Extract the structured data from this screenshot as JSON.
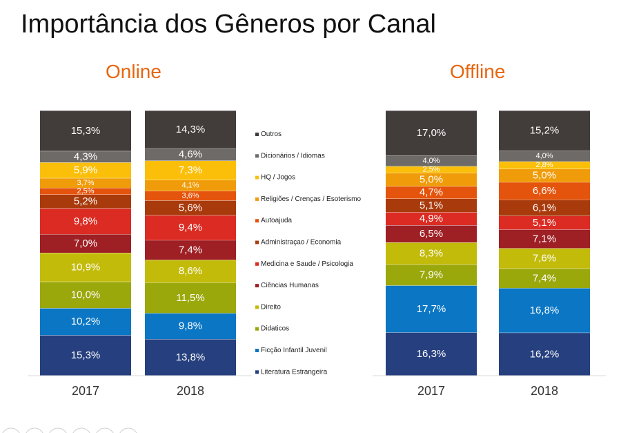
{
  "title": "Importância dos Gêneros por Canal",
  "chart_data": [
    {
      "type": "bar",
      "stacked": true,
      "title": "Online",
      "categories": [
        "2017",
        "2018"
      ],
      "series": [
        {
          "name": "Literatura Estrangeira",
          "values": [
            15.3,
            13.8
          ],
          "labels": [
            "15,3%",
            "13,8%"
          ],
          "color": "#263f7e",
          "label_color": "#ffffff"
        },
        {
          "name": "Ficção Infantil Juvenil",
          "values": [
            10.2,
            9.8
          ],
          "labels": [
            "10,2%",
            "9,8%"
          ],
          "color": "#0a76c4",
          "label_color": "#ffffff"
        },
        {
          "name": "Didaticos",
          "values": [
            10.0,
            11.5
          ],
          "labels": [
            "10,0%",
            "11,5%"
          ],
          "color": "#9aa80c",
          "label_color": "#ffffff"
        },
        {
          "name": "Direito",
          "values": [
            10.9,
            8.6
          ],
          "labels": [
            "10,9%",
            "8,6%"
          ],
          "color": "#c3bb0a",
          "label_color": "#ffffff"
        },
        {
          "name": "Ciências Humanas",
          "values": [
            7.0,
            7.4
          ],
          "labels": [
            "7,0%",
            "7,4%"
          ],
          "color": "#9e1f24",
          "label_color": "#ffffff"
        },
        {
          "name": "Medicina e Saude / Psicologia",
          "values": [
            9.8,
            9.4
          ],
          "labels": [
            "9,8%",
            "9,4%"
          ],
          "color": "#db2b23",
          "label_color": "#ffffff"
        },
        {
          "name": "Administraçao / Economia",
          "values": [
            5.2,
            5.6
          ],
          "labels": [
            "5,2%",
            "5,6%"
          ],
          "color": "#a93a0c",
          "label_color": "#ffffff"
        },
        {
          "name": "Autoajuda",
          "values": [
            2.5,
            3.6
          ],
          "labels": [
            "2,5%",
            "3,6%"
          ],
          "color": "#e5540c",
          "label_color": "#ffffff"
        },
        {
          "name": "Religiões / Crenças / Esoterismo",
          "values": [
            3.7,
            4.1
          ],
          "labels": [
            "3,7%",
            "4,1%"
          ],
          "color": "#f09c0a",
          "label_color": "#ffffff"
        },
        {
          "name": "HQ / Jogos",
          "values": [
            5.9,
            7.3
          ],
          "labels": [
            "5,9%",
            "7,3%"
          ],
          "color": "#fbbf09",
          "label_color": "#ffffff"
        },
        {
          "name": "Dicionários / Idiomas",
          "values": [
            4.3,
            4.6
          ],
          "labels": [
            "4,3%",
            "4,6%"
          ],
          "color": "#6e6a67",
          "label_color": "#ffffff"
        },
        {
          "name": "Outros",
          "values": [
            15.3,
            14.3
          ],
          "labels": [
            "15,3%",
            "14,3%"
          ],
          "color": "#423c3a",
          "label_color": "#ffffff"
        }
      ]
    },
    {
      "type": "bar",
      "stacked": true,
      "title": "Offline",
      "categories": [
        "2017",
        "2018"
      ],
      "series": [
        {
          "name": "Literatura Estrangeira",
          "values": [
            16.3,
            16.2
          ],
          "labels": [
            "16,3%",
            "16,2%"
          ],
          "color": "#263f7e",
          "label_color": "#ffffff"
        },
        {
          "name": "Ficção Infantil Juvenil",
          "values": [
            17.7,
            16.8
          ],
          "labels": [
            "17,7%",
            "16,8%"
          ],
          "color": "#0a76c4",
          "label_color": "#ffffff"
        },
        {
          "name": "Didaticos",
          "values": [
            7.9,
            7.4
          ],
          "labels": [
            "7,9%",
            "7,4%"
          ],
          "color": "#9aa80c",
          "label_color": "#ffffff"
        },
        {
          "name": "Direito",
          "values": [
            8.3,
            7.6
          ],
          "labels": [
            "8,3%",
            "7,6%"
          ],
          "color": "#c3bb0a",
          "label_color": "#ffffff"
        },
        {
          "name": "Ciências Humanas",
          "values": [
            6.5,
            7.1
          ],
          "labels": [
            "6,5%",
            "7,1%"
          ],
          "color": "#9e1f24",
          "label_color": "#ffffff"
        },
        {
          "name": "Medicina e Saude / Psicologia",
          "values": [
            4.9,
            5.1
          ],
          "labels": [
            "4,9%",
            "5,1%"
          ],
          "color": "#db2b23",
          "label_color": "#ffffff"
        },
        {
          "name": "Administraçao / Economia",
          "values": [
            5.1,
            6.1
          ],
          "labels": [
            "5,1%",
            "6,1%"
          ],
          "color": "#a93a0c",
          "label_color": "#ffffff"
        },
        {
          "name": "Autoajuda",
          "values": [
            4.7,
            6.6
          ],
          "labels": [
            "4,7%",
            "6,6%"
          ],
          "color": "#e5540c",
          "label_color": "#ffffff"
        },
        {
          "name": "Religiões / Crenças / Esoterismo",
          "values": [
            5.0,
            5.0
          ],
          "labels": [
            "5,0%",
            "5,0%"
          ],
          "color": "#f09c0a",
          "label_color": "#ffffff"
        },
        {
          "name": "HQ / Jogos",
          "values": [
            2.5,
            2.8
          ],
          "labels": [
            "2,5%",
            "2,8%"
          ],
          "color": "#fbbf09",
          "label_color": "#ffffff"
        },
        {
          "name": "Dicionários / Idiomas",
          "values": [
            4.0,
            4.0
          ],
          "labels": [
            "4,0%",
            "4,0%"
          ],
          "color": "#6e6a67",
          "label_color": "#ffffff"
        },
        {
          "name": "Outros",
          "values": [
            17.0,
            15.2
          ],
          "labels": [
            "17,0%",
            "15,2%"
          ],
          "color": "#423c3a",
          "label_color": "#ffffff"
        }
      ]
    }
  ],
  "legend": {
    "items": [
      {
        "name": "Outros",
        "color": "#423c3a"
      },
      {
        "name": "Dicionários / Idiomas",
        "color": "#6e6a67"
      },
      {
        "name": "HQ / Jogos",
        "color": "#fbbf09"
      },
      {
        "name": "Religiões / Crenças / Esoterismo",
        "color": "#f09c0a"
      },
      {
        "name": "Autoajuda",
        "color": "#e5540c"
      },
      {
        "name": "Administraçao / Economia",
        "color": "#a93a0c"
      },
      {
        "name": "Medicina e Saude / Psicologia",
        "color": "#db2b23"
      },
      {
        "name": "Ciências Humanas",
        "color": "#9e1f24"
      },
      {
        "name": "Direito",
        "color": "#c3bb0a"
      },
      {
        "name": "Didaticos",
        "color": "#9aa80c"
      },
      {
        "name": "Ficção Infantil Juvenil",
        "color": "#0a76c4"
      },
      {
        "name": "Literatura Estrangeira",
        "color": "#263f7e"
      }
    ]
  }
}
